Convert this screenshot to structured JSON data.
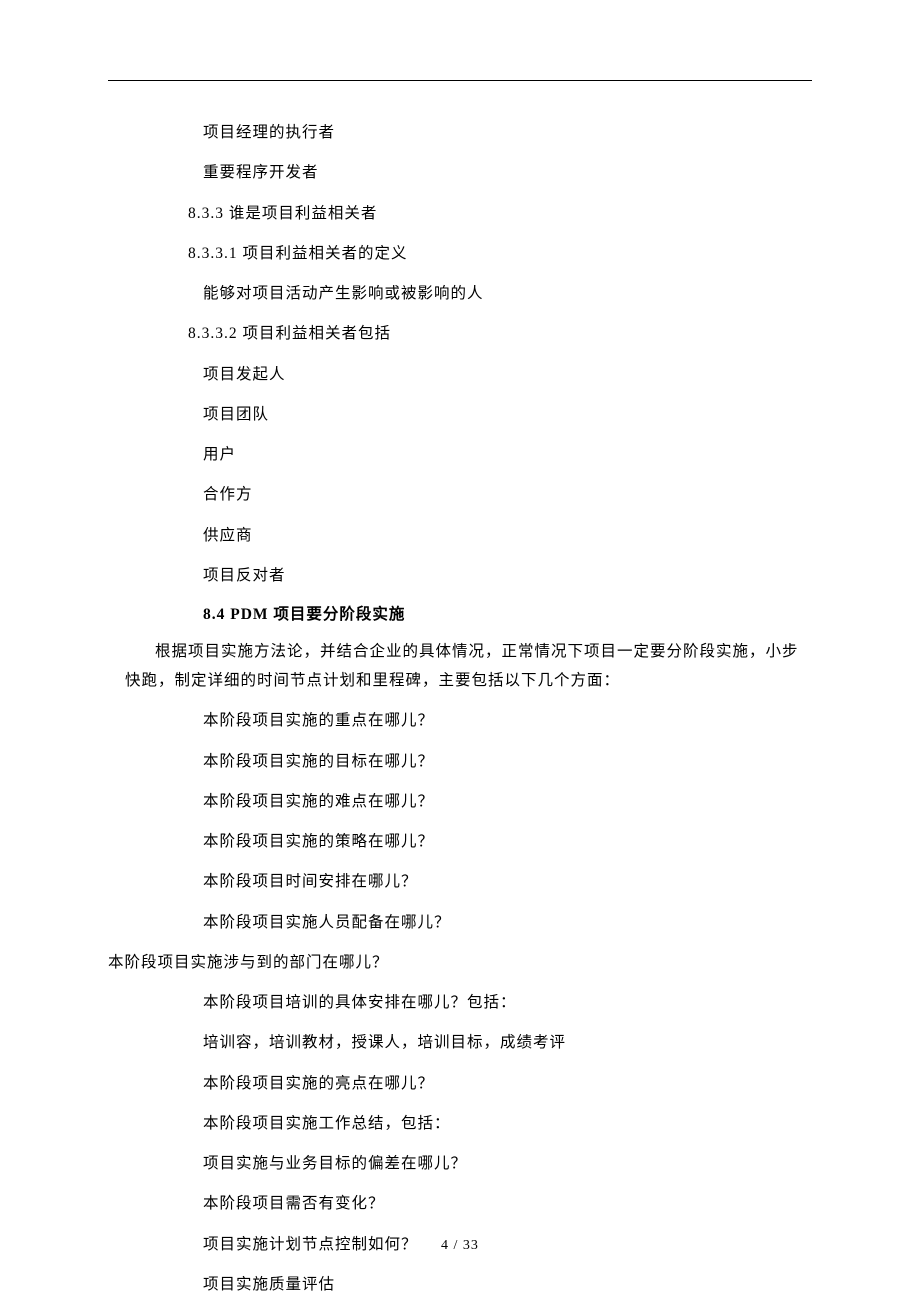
{
  "page": {
    "number": "4  / 33"
  },
  "content": {
    "lines": [
      {
        "cls": "body-line indent-2",
        "text": "项目经理的执行者"
      },
      {
        "cls": "body-line indent-2",
        "text": "重要程序开发者"
      },
      {
        "cls": "body-line indent-1",
        "text": "8.3.3 谁是项目利益相关者"
      },
      {
        "cls": "body-line indent-1",
        "text": "8.3.3.1 项目利益相关者的定义"
      },
      {
        "cls": "body-line indent-2",
        "text": "能够对项目活动产生影响或被影响的人"
      },
      {
        "cls": "body-line indent-1",
        "text": "8.3.3.2 项目利益相关者包括"
      },
      {
        "cls": "body-line indent-2",
        "text": "项目发起人"
      },
      {
        "cls": "body-line indent-2",
        "text": "项目团队"
      },
      {
        "cls": "body-line indent-2",
        "text": "用户"
      },
      {
        "cls": "body-line indent-2",
        "text": "合作方"
      },
      {
        "cls": "body-line indent-2",
        "text": "供应商"
      },
      {
        "cls": "body-line indent-2",
        "text": "项目反对者"
      }
    ],
    "heading": "8.4 PDM 项目要分阶段实施",
    "paragraph": "根据项目实施方法论，并结合企业的具体情况，正常情况下项目一定要分阶段实施，小步快跑，制定详细的时间节点计划和里程碑，主要包括以下几个方面：",
    "questions": [
      {
        "cls": "body-line indent-2",
        "text": "本阶段项目实施的重点在哪儿？"
      },
      {
        "cls": "body-line indent-2",
        "text": "本阶段项目实施的目标在哪儿？"
      },
      {
        "cls": "body-line indent-2",
        "text": "本阶段项目实施的难点在哪儿？"
      },
      {
        "cls": "body-line indent-2",
        "text": "本阶段项目实施的策略在哪儿？"
      },
      {
        "cls": "body-line indent-2",
        "text": "本阶段项目时间安排在哪儿？"
      },
      {
        "cls": "body-line indent-2",
        "text": "本阶段项目实施人员配备在哪儿？"
      },
      {
        "cls": "body-line indent-0",
        "text": "本阶段项目实施涉与到的部门在哪儿？"
      },
      {
        "cls": "body-line indent-2",
        "text": "本阶段项目培训的具体安排在哪儿？包括："
      },
      {
        "cls": "body-line indent-2",
        "text": "培训容，培训教材，授课人，培训目标，成绩考评"
      },
      {
        "cls": "body-line indent-2",
        "text": "本阶段项目实施的亮点在哪儿？"
      },
      {
        "cls": "body-line indent-2",
        "text": "本阶段项目实施工作总结，包括："
      },
      {
        "cls": "body-line indent-2",
        "text": "项目实施与业务目标的偏差在哪儿？"
      },
      {
        "cls": "body-line indent-2",
        "text": "本阶段项目需否有变化？"
      },
      {
        "cls": "body-line indent-2",
        "text": "项目实施计划节点控制如何？"
      },
      {
        "cls": "body-line indent-2",
        "text": "项目实施质量评估"
      }
    ]
  }
}
